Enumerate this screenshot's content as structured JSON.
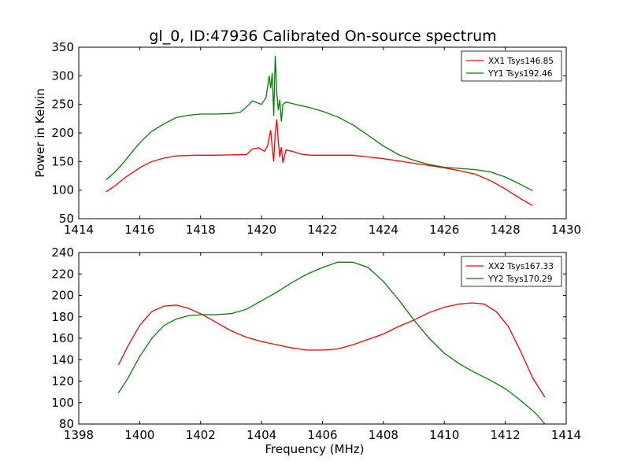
{
  "figure": {
    "title": "gl_0, ID:47936 Calibrated On-source spectrum"
  },
  "chart_data": [
    {
      "type": "line",
      "ylabel": "Power in Kelvin",
      "xlabel": "",
      "xlim": [
        1414,
        1430
      ],
      "ylim": [
        50,
        350
      ],
      "xticks": [
        1414,
        1416,
        1418,
        1420,
        1422,
        1424,
        1426,
        1428,
        1430
      ],
      "yticks": [
        50,
        100,
        150,
        200,
        250,
        300,
        350
      ],
      "grid": false,
      "legend_position": "top-right",
      "series": [
        {
          "name": "XX1 Tsys146.85",
          "color": "#ff0000",
          "points": [
            [
              1414.9,
              97
            ],
            [
              1415.2,
              108
            ],
            [
              1415.5,
              121
            ],
            [
              1415.8,
              132
            ],
            [
              1416.1,
              142
            ],
            [
              1416.4,
              150
            ],
            [
              1416.8,
              156
            ],
            [
              1417.2,
              160
            ],
            [
              1417.8,
              161
            ],
            [
              1418.5,
              161
            ],
            [
              1419.2,
              162
            ],
            [
              1419.5,
              162
            ],
            [
              1419.7,
              172
            ],
            [
              1419.9,
              174
            ],
            [
              1420.1,
              168
            ],
            [
              1420.2,
              178
            ],
            [
              1420.3,
              205
            ],
            [
              1420.35,
              175
            ],
            [
              1420.4,
              150
            ],
            [
              1420.45,
              200
            ],
            [
              1420.5,
              224
            ],
            [
              1420.55,
              185
            ],
            [
              1420.6,
              158
            ],
            [
              1420.65,
              175
            ],
            [
              1420.7,
              148
            ],
            [
              1420.8,
              170
            ],
            [
              1421.0,
              168
            ],
            [
              1421.3,
              163
            ],
            [
              1421.6,
              161
            ],
            [
              1422.0,
              161
            ],
            [
              1422.5,
              161
            ],
            [
              1423.0,
              161
            ],
            [
              1423.5,
              158
            ],
            [
              1424.0,
              155
            ],
            [
              1424.5,
              151
            ],
            [
              1425.0,
              147
            ],
            [
              1425.5,
              143
            ],
            [
              1426.0,
              139
            ],
            [
              1426.5,
              134
            ],
            [
              1427.0,
              128
            ],
            [
              1427.5,
              117
            ],
            [
              1428.0,
              102
            ],
            [
              1428.5,
              85
            ],
            [
              1428.9,
              73
            ]
          ]
        },
        {
          "name": "YY1 Tsys192.46",
          "color": "#008000",
          "points": [
            [
              1414.9,
              118
            ],
            [
              1415.2,
              132
            ],
            [
              1415.5,
              150
            ],
            [
              1415.8,
              170
            ],
            [
              1416.1,
              188
            ],
            [
              1416.4,
              203
            ],
            [
              1416.8,
              216
            ],
            [
              1417.2,
              227
            ],
            [
              1417.6,
              231
            ],
            [
              1418.0,
              233
            ],
            [
              1418.5,
              233
            ],
            [
              1419.0,
              234
            ],
            [
              1419.3,
              236
            ],
            [
              1419.6,
              250
            ],
            [
              1419.7,
              256
            ],
            [
              1420.0,
              250
            ],
            [
              1420.15,
              262
            ],
            [
              1420.25,
              300
            ],
            [
              1420.3,
              278
            ],
            [
              1420.35,
              305
            ],
            [
              1420.4,
              230
            ],
            [
              1420.45,
              335
            ],
            [
              1420.5,
              270
            ],
            [
              1420.55,
              240
            ],
            [
              1420.6,
              258
            ],
            [
              1420.65,
              220
            ],
            [
              1420.7,
              250
            ],
            [
              1420.8,
              254
            ],
            [
              1421.2,
              249
            ],
            [
              1421.6,
              244
            ],
            [
              1422.0,
              238
            ],
            [
              1422.5,
              228
            ],
            [
              1423.0,
              214
            ],
            [
              1423.5,
              196
            ],
            [
              1424.0,
              177
            ],
            [
              1424.5,
              162
            ],
            [
              1425.0,
              152
            ],
            [
              1425.5,
              145
            ],
            [
              1426.0,
              140
            ],
            [
              1426.5,
              138
            ],
            [
              1427.0,
              136
            ],
            [
              1427.5,
              132
            ],
            [
              1428.0,
              123
            ],
            [
              1428.5,
              110
            ],
            [
              1428.9,
              99
            ]
          ]
        }
      ]
    },
    {
      "type": "line",
      "xlabel": "Frequency (MHz)",
      "ylabel": "",
      "xlim": [
        1398,
        1414
      ],
      "ylim": [
        80,
        240
      ],
      "xticks": [
        1398,
        1400,
        1402,
        1404,
        1406,
        1408,
        1410,
        1412,
        1414
      ],
      "yticks": [
        80,
        100,
        120,
        140,
        160,
        180,
        200,
        220,
        240
      ],
      "grid": false,
      "legend_position": "top-right",
      "series": [
        {
          "name": "XX2 Tsys167.33",
          "color": "#ff0000",
          "points": [
            [
              1399.3,
              135
            ],
            [
              1399.6,
              152
            ],
            [
              1400.0,
              172
            ],
            [
              1400.4,
              185
            ],
            [
              1400.8,
              190
            ],
            [
              1401.2,
              191
            ],
            [
              1401.6,
              188
            ],
            [
              1402.0,
              183
            ],
            [
              1402.5,
              175
            ],
            [
              1403.0,
              167
            ],
            [
              1403.5,
              161
            ],
            [
              1404.0,
              157
            ],
            [
              1404.5,
              154
            ],
            [
              1405.0,
              151
            ],
            [
              1405.5,
              149
            ],
            [
              1406.0,
              149
            ],
            [
              1406.5,
              150
            ],
            [
              1407.0,
              154
            ],
            [
              1407.5,
              159
            ],
            [
              1408.0,
              164
            ],
            [
              1408.5,
              171
            ],
            [
              1409.0,
              177
            ],
            [
              1409.5,
              184
            ],
            [
              1410.0,
              189
            ],
            [
              1410.5,
              192
            ],
            [
              1410.9,
              193
            ],
            [
              1411.3,
              192
            ],
            [
              1411.7,
              185
            ],
            [
              1412.1,
              171
            ],
            [
              1412.5,
              148
            ],
            [
              1412.9,
              123
            ],
            [
              1413.3,
              105
            ]
          ]
        },
        {
          "name": "YY2 Tsys170.29",
          "color": "#008000",
          "points": [
            [
              1399.3,
              109
            ],
            [
              1399.6,
              122
            ],
            [
              1400.0,
              143
            ],
            [
              1400.4,
              160
            ],
            [
              1400.8,
              172
            ],
            [
              1401.2,
              178
            ],
            [
              1401.6,
              181
            ],
            [
              1402.0,
              182
            ],
            [
              1402.5,
              182
            ],
            [
              1403.0,
              183
            ],
            [
              1403.5,
              187
            ],
            [
              1404.0,
              195
            ],
            [
              1404.5,
              203
            ],
            [
              1405.0,
              212
            ],
            [
              1405.5,
              220
            ],
            [
              1406.0,
              226
            ],
            [
              1406.5,
              231
            ],
            [
              1407.0,
              231
            ],
            [
              1407.5,
              226
            ],
            [
              1408.0,
              213
            ],
            [
              1408.5,
              196
            ],
            [
              1409.0,
              177
            ],
            [
              1409.5,
              160
            ],
            [
              1410.0,
              146
            ],
            [
              1410.5,
              136
            ],
            [
              1411.0,
              128
            ],
            [
              1411.5,
              121
            ],
            [
              1412.0,
              113
            ],
            [
              1412.5,
              102
            ],
            [
              1413.0,
              90
            ],
            [
              1413.3,
              80
            ]
          ]
        }
      ]
    }
  ]
}
